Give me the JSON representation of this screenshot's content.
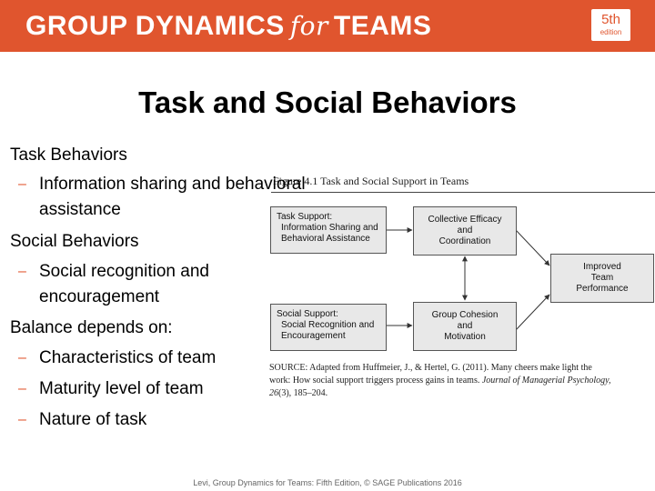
{
  "header": {
    "title_part1": "GROUP DYNAMICS",
    "title_for": "for",
    "title_part2": "TEAMS",
    "edition_number": "5th",
    "edition_word": "edition",
    "banner_color": "#e0552e"
  },
  "slide": {
    "title": "Task and Social Behaviors",
    "bullets": [
      {
        "level": 1,
        "text": "Task Behaviors"
      },
      {
        "level": 2,
        "text": "Information sharing and behavioral"
      },
      {
        "level": 2,
        "text": "assistance"
      },
      {
        "level": 1,
        "text": "Social Behaviors"
      },
      {
        "level": 2,
        "text": "Social recognition and"
      },
      {
        "level": 2,
        "text": "encouragement"
      },
      {
        "level": 1,
        "text": "Balance depends on:"
      },
      {
        "level": 2,
        "text": "Characteristics of team"
      },
      {
        "level": 2,
        "text": "Maturity level of team"
      },
      {
        "level": 2,
        "text": "Nature of task"
      }
    ],
    "dash_glyph": "–"
  },
  "figure": {
    "caption": "Figure 4.1   Task and Social Support in Teams",
    "task_support": {
      "title": "Task Support:",
      "line1": "Information Sharing and",
      "line2": "Behavioral Assistance"
    },
    "social_support": {
      "title": "Social Support:",
      "line1": "Social Recognition and",
      "line2": "Encouragement"
    },
    "collective_efficacy": {
      "line1": "Collective Efficacy",
      "line2": "and",
      "line3": "Coordination"
    },
    "group_cohesion": {
      "line1": "Group Cohesion",
      "line2": "and",
      "line3": "Motivation"
    },
    "improved": {
      "line1": "Improved",
      "line2": "Team",
      "line3": "Performance"
    },
    "source_line1": "SOURCE: Adapted from Huffmeier, J., & Hertel, G. (2011). Many cheers make light the",
    "source_line2_plain": "work: How social support triggers process gains in teams.",
    "source_journal": "Journal of Managerial Psychology,",
    "source_volume": "26",
    "source_pages": "(3), 185–204."
  },
  "footer": {
    "text": "Levi, Group Dynamics for Teams: Fifth Edition, © SAGE Publications 2016"
  }
}
